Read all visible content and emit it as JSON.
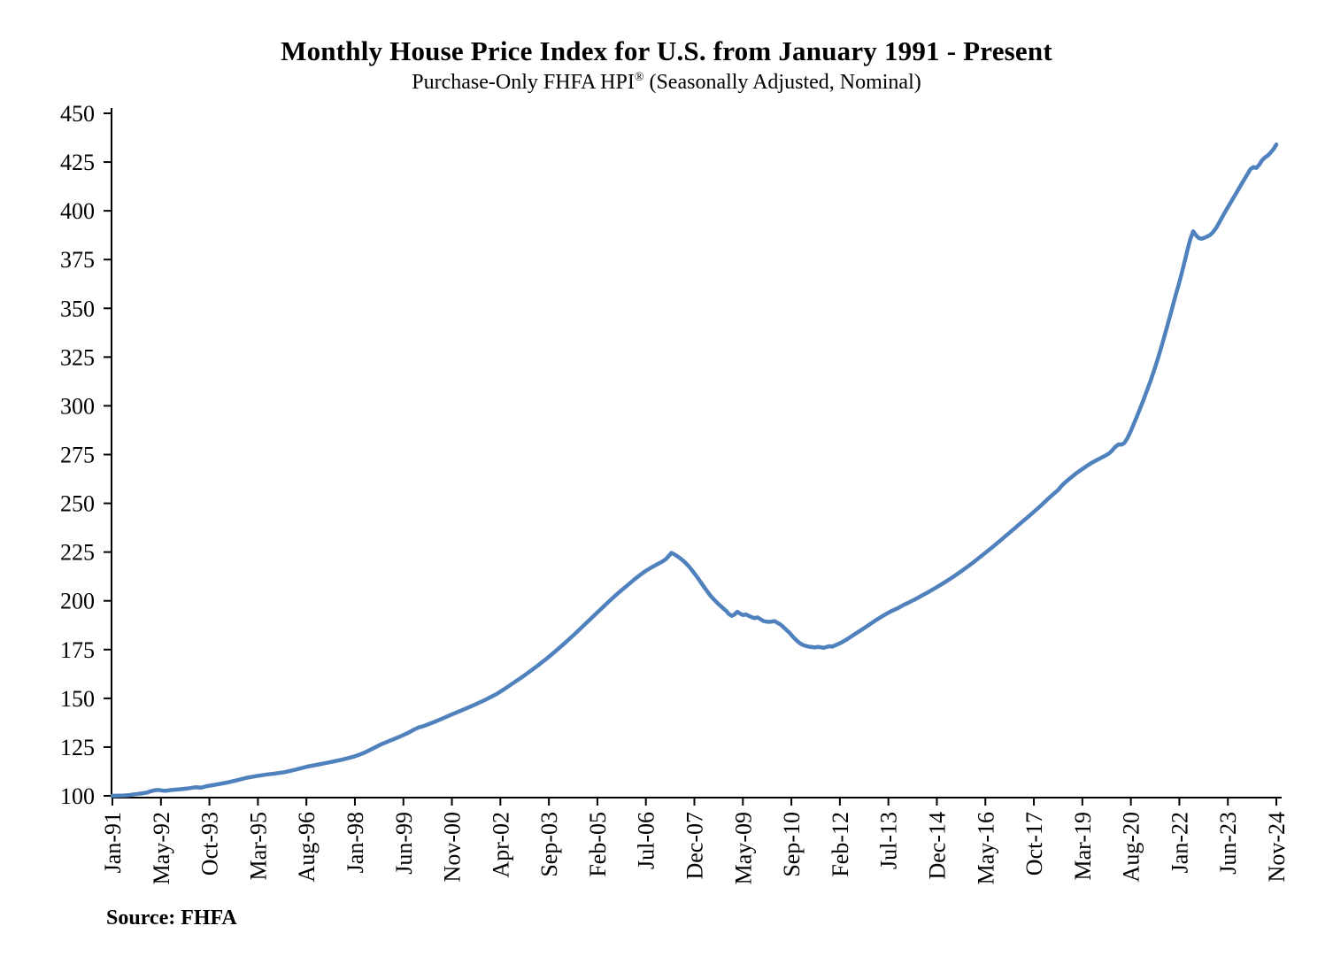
{
  "header": {
    "title": "Monthly House Price Index for U.S. from January 1991 - Present",
    "subtitle_pre": "Purchase-Only FHFA HPI",
    "subtitle_sup": "®",
    "subtitle_post": " (Seasonally Adjusted, Nominal)"
  },
  "footer": {
    "source_label": "Source: FHFA"
  },
  "chart_data": {
    "type": "line",
    "title": "Monthly House Price Index for U.S. from January 1991 - Present",
    "subtitle": "Purchase-Only FHFA HPI® (Seasonally Adjusted, Nominal)",
    "xlabel": "",
    "ylabel": "",
    "grid": false,
    "legend": "none",
    "index_base": "Jan-91 = 100",
    "frequency": "monthly",
    "ylim": [
      100,
      450
    ],
    "y_axis": {
      "min": 100,
      "max": 450,
      "step": 25,
      "ticks": [
        100,
        125,
        150,
        175,
        200,
        225,
        250,
        275,
        300,
        325,
        350,
        375,
        400,
        425,
        450
      ]
    },
    "x_axis": {
      "first_month": "Jan-91",
      "last_month": "Nov-24",
      "total_months": 407,
      "tick_labels": [
        "Jan-91",
        "May-92",
        "Oct-93",
        "Mar-95",
        "Aug-96",
        "Jan-98",
        "Jun-99",
        "Nov-00",
        "Apr-02",
        "Sep-03",
        "Feb-05",
        "Jul-06",
        "Dec-07",
        "May-09",
        "Sep-10",
        "Feb-12",
        "Jul-13",
        "Dec-14",
        "May-16",
        "Oct-17",
        "Mar-19",
        "Aug-20",
        "Jan-22",
        "Jun-23",
        "Nov-24"
      ],
      "tick_months": [
        0,
        16,
        33,
        50,
        67,
        84,
        101,
        118,
        135,
        152,
        169,
        186,
        203,
        220,
        236,
        253,
        270,
        287,
        304,
        321,
        338,
        355,
        372,
        389,
        406
      ]
    },
    "series": [
      {
        "name": "FHFA Purchase-Only HPI (SA, nominal)",
        "color": "#4F81BD",
        "points_format": "[months_since_Jan_1991, index_value] (values read from plot; linear between samples)",
        "points": [
          [
            0,
            100.0
          ],
          [
            2,
            100.1
          ],
          [
            4,
            100.2
          ],
          [
            6,
            100.4
          ],
          [
            8,
            100.8
          ],
          [
            10,
            101.2
          ],
          [
            12,
            101.7
          ],
          [
            13,
            102.2
          ],
          [
            14,
            102.6
          ],
          [
            15,
            102.9
          ],
          [
            16,
            103.0
          ],
          [
            17,
            102.8
          ],
          [
            18,
            102.6
          ],
          [
            19,
            102.7
          ],
          [
            21,
            103.1
          ],
          [
            23,
            103.3
          ],
          [
            26,
            103.7
          ],
          [
            29,
            104.4
          ],
          [
            31,
            104.2
          ],
          [
            33,
            105.0
          ],
          [
            36,
            105.7
          ],
          [
            40,
            106.8
          ],
          [
            44,
            108.2
          ],
          [
            47,
            109.3
          ],
          [
            50,
            110.1
          ],
          [
            54,
            111.0
          ],
          [
            57,
            111.5
          ],
          [
            60,
            112.1
          ],
          [
            64,
            113.5
          ],
          [
            68,
            115.0
          ],
          [
            72,
            116.1
          ],
          [
            76,
            117.3
          ],
          [
            80,
            118.5
          ],
          [
            84,
            120.0
          ],
          [
            86,
            121.0
          ],
          [
            88,
            122.2
          ],
          [
            91,
            124.4
          ],
          [
            94,
            126.6
          ],
          [
            97,
            128.4
          ],
          [
            100,
            130.2
          ],
          [
            103,
            132.2
          ],
          [
            105,
            133.8
          ],
          [
            107,
            135.2
          ],
          [
            108,
            135.5
          ],
          [
            110,
            136.6
          ],
          [
            113,
            138.3
          ],
          [
            116,
            140.2
          ],
          [
            118,
            141.5
          ],
          [
            121,
            143.3
          ],
          [
            124,
            145.2
          ],
          [
            127,
            147.1
          ],
          [
            130,
            149.2
          ],
          [
            134,
            152.2
          ],
          [
            137,
            155.0
          ],
          [
            140,
            158.0
          ],
          [
            143,
            161.0
          ],
          [
            146,
            164.2
          ],
          [
            149,
            167.5
          ],
          [
            152,
            171.0
          ],
          [
            155,
            174.7
          ],
          [
            158,
            178.6
          ],
          [
            161,
            182.6
          ],
          [
            164,
            186.8
          ],
          [
            167,
            191.0
          ],
          [
            170,
            195.2
          ],
          [
            173,
            199.4
          ],
          [
            176,
            203.4
          ],
          [
            178,
            205.9
          ],
          [
            180,
            208.4
          ],
          [
            182,
            210.9
          ],
          [
            184,
            213.2
          ],
          [
            186,
            215.3
          ],
          [
            188,
            217.1
          ],
          [
            190,
            218.7
          ],
          [
            191,
            219.5
          ],
          [
            192,
            220.3
          ],
          [
            193,
            221.3
          ],
          [
            194,
            222.9
          ],
          [
            195,
            224.6
          ],
          [
            196,
            223.9
          ],
          [
            197,
            222.9
          ],
          [
            198,
            221.9
          ],
          [
            199,
            220.7
          ],
          [
            200,
            219.3
          ],
          [
            201,
            217.8
          ],
          [
            202,
            216.0
          ],
          [
            203,
            214.1
          ],
          [
            204,
            212.1
          ],
          [
            205,
            210.0
          ],
          [
            206,
            207.9
          ],
          [
            207,
            205.8
          ],
          [
            208,
            203.8
          ],
          [
            209,
            202.0
          ],
          [
            210,
            200.4
          ],
          [
            211,
            198.9
          ],
          [
            212,
            197.5
          ],
          [
            213,
            196.2
          ],
          [
            214,
            195.0
          ],
          [
            215,
            193.3
          ],
          [
            216,
            192.3
          ],
          [
            217,
            193.0
          ],
          [
            218,
            194.4
          ],
          [
            219,
            193.4
          ],
          [
            220,
            192.7
          ],
          [
            221,
            193.0
          ],
          [
            222,
            192.3
          ],
          [
            223,
            191.6
          ],
          [
            224,
            191.1
          ],
          [
            225,
            191.5
          ],
          [
            226,
            190.6
          ],
          [
            227,
            189.7
          ],
          [
            228,
            189.4
          ],
          [
            229,
            189.2
          ],
          [
            230,
            189.4
          ],
          [
            231,
            189.6
          ],
          [
            232,
            188.7
          ],
          [
            233,
            187.9
          ],
          [
            234,
            186.6
          ],
          [
            235,
            185.2
          ],
          [
            236,
            183.9
          ],
          [
            237,
            182.2
          ],
          [
            238,
            180.6
          ],
          [
            239,
            179.2
          ],
          [
            240,
            178.1
          ],
          [
            241,
            177.3
          ],
          [
            242,
            176.8
          ],
          [
            243,
            176.5
          ],
          [
            244,
            176.3
          ],
          [
            245,
            176.1
          ],
          [
            246,
            176.4
          ],
          [
            247,
            176.2
          ],
          [
            248,
            175.9
          ],
          [
            249,
            176.3
          ],
          [
            250,
            176.7
          ],
          [
            251,
            176.5
          ],
          [
            252,
            177.1
          ],
          [
            253,
            177.7
          ],
          [
            254,
            178.4
          ],
          [
            255,
            179.2
          ],
          [
            256,
            180.1
          ],
          [
            258,
            182.0
          ],
          [
            260,
            183.9
          ],
          [
            262,
            185.8
          ],
          [
            264,
            187.8
          ],
          [
            266,
            189.8
          ],
          [
            268,
            191.6
          ],
          [
            270,
            193.4
          ],
          [
            272,
            194.9
          ],
          [
            274,
            196.3
          ],
          [
            276,
            197.9
          ],
          [
            278,
            199.3
          ],
          [
            280,
            200.8
          ],
          [
            282,
            202.4
          ],
          [
            284,
            204.0
          ],
          [
            286,
            205.7
          ],
          [
            288,
            207.4
          ],
          [
            290,
            209.2
          ],
          [
            292,
            211.1
          ],
          [
            294,
            213.0
          ],
          [
            296,
            215.1
          ],
          [
            298,
            217.2
          ],
          [
            300,
            219.4
          ],
          [
            302,
            221.7
          ],
          [
            304,
            224.0
          ],
          [
            306,
            226.4
          ],
          [
            308,
            228.8
          ],
          [
            310,
            231.3
          ],
          [
            312,
            233.8
          ],
          [
            314,
            236.3
          ],
          [
            316,
            238.8
          ],
          [
            318,
            241.3
          ],
          [
            320,
            243.8
          ],
          [
            322,
            246.4
          ],
          [
            324,
            249.0
          ],
          [
            326,
            251.8
          ],
          [
            328,
            254.5
          ],
          [
            330,
            257.0
          ],
          [
            331,
            258.8
          ],
          [
            332,
            260.3
          ],
          [
            334,
            262.8
          ],
          [
            336,
            265.2
          ],
          [
            338,
            267.3
          ],
          [
            340,
            269.3
          ],
          [
            342,
            271.1
          ],
          [
            344,
            272.7
          ],
          [
            346,
            274.2
          ],
          [
            347,
            275.0
          ],
          [
            348,
            276.0
          ],
          [
            349,
            277.6
          ],
          [
            350,
            279.2
          ],
          [
            351,
            280.2
          ],
          [
            352,
            280.1
          ],
          [
            353,
            281.0
          ],
          [
            354,
            283.3
          ],
          [
            355,
            286.3
          ],
          [
            356,
            289.8
          ],
          [
            357,
            293.3
          ],
          [
            358,
            296.9
          ],
          [
            359,
            300.6
          ],
          [
            360,
            304.4
          ],
          [
            361,
            308.3
          ],
          [
            362,
            312.3
          ],
          [
            363,
            316.6
          ],
          [
            364,
            321.1
          ],
          [
            365,
            325.8
          ],
          [
            366,
            330.7
          ],
          [
            367,
            335.9
          ],
          [
            368,
            341.2
          ],
          [
            369,
            346.6
          ],
          [
            370,
            352.0
          ],
          [
            371,
            357.3
          ],
          [
            372,
            362.5
          ],
          [
            373,
            368.0
          ],
          [
            374,
            374.0
          ],
          [
            375,
            380.0
          ],
          [
            376,
            385.5
          ],
          [
            377,
            389.5
          ],
          [
            378,
            387.4
          ],
          [
            379,
            386.0
          ],
          [
            380,
            385.7
          ],
          [
            381,
            386.2
          ],
          [
            382,
            386.9
          ],
          [
            383,
            387.7
          ],
          [
            384,
            389.2
          ],
          [
            385,
            391.2
          ],
          [
            386,
            393.8
          ],
          [
            387,
            396.5
          ],
          [
            388,
            399.1
          ],
          [
            389,
            401.6
          ],
          [
            390,
            404.1
          ],
          [
            391,
            406.6
          ],
          [
            392,
            409.1
          ],
          [
            393,
            411.6
          ],
          [
            394,
            414.1
          ],
          [
            395,
            416.6
          ],
          [
            396,
            419.0
          ],
          [
            397,
            421.4
          ],
          [
            398,
            422.4
          ],
          [
            399,
            422.0
          ],
          [
            400,
            423.6
          ],
          [
            401,
            425.9
          ],
          [
            402,
            427.3
          ],
          [
            403,
            428.3
          ],
          [
            404,
            429.9
          ],
          [
            405,
            431.6
          ],
          [
            406,
            434.0
          ]
        ]
      }
    ],
    "annotations": {
      "peak_2007": {
        "month": "Apr-07",
        "value": 224.6
      },
      "trough_2011": {
        "month": "Sep-11",
        "value": 175.9
      },
      "local_peak_2022": {
        "month": "Jun-22",
        "value": 389.5
      },
      "last_point": {
        "month": "Nov-24",
        "value": 434.0
      }
    }
  },
  "colors": {
    "series_line": "#4F81BD",
    "axis": "#000000",
    "background": "#ffffff"
  }
}
